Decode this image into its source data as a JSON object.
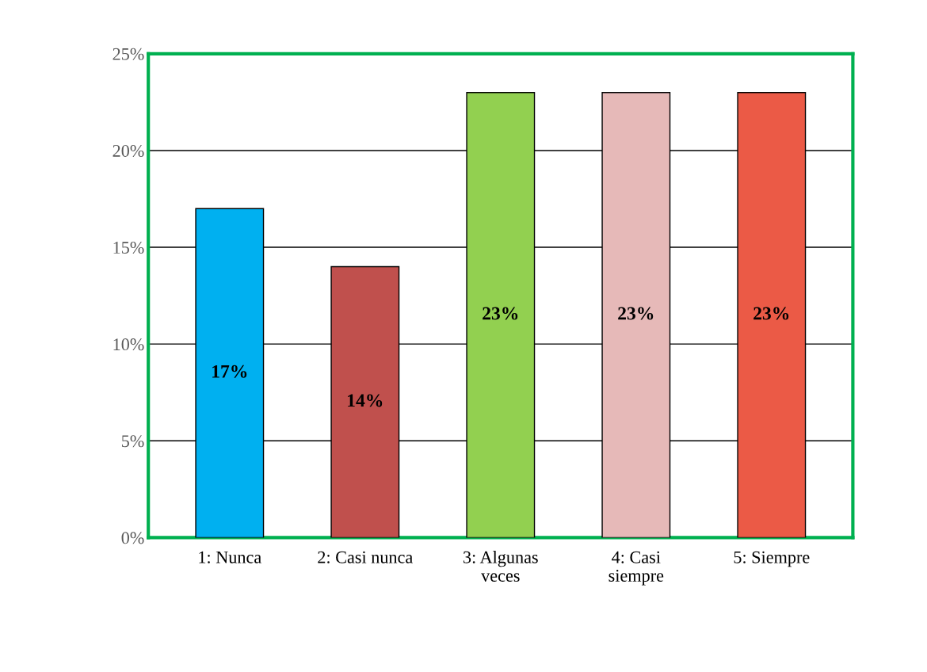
{
  "chart_data": {
    "type": "bar",
    "categories": [
      "1: Nunca",
      "2: Casi nunca",
      "3: Algunas\nveces",
      "4: Casi\nsiempre",
      "5: Siempre"
    ],
    "values": [
      17,
      14,
      23,
      23,
      23
    ],
    "colors": [
      "#00b0f0",
      "#c0504d",
      "#92d050",
      "#e6b9b8",
      "#eb5a46"
    ],
    "value_labels": [
      "17%",
      "14%",
      "23%",
      "23%",
      "23%"
    ],
    "ylim": [
      0,
      25
    ],
    "yticks": [
      {
        "value": 0,
        "label": "0%"
      },
      {
        "value": 5,
        "label": "5%"
      },
      {
        "value": 10,
        "label": "10%"
      },
      {
        "value": 15,
        "label": "15%"
      },
      {
        "value": 20,
        "label": "20%"
      },
      {
        "value": 25,
        "label": "25%"
      }
    ],
    "grid": "y"
  }
}
